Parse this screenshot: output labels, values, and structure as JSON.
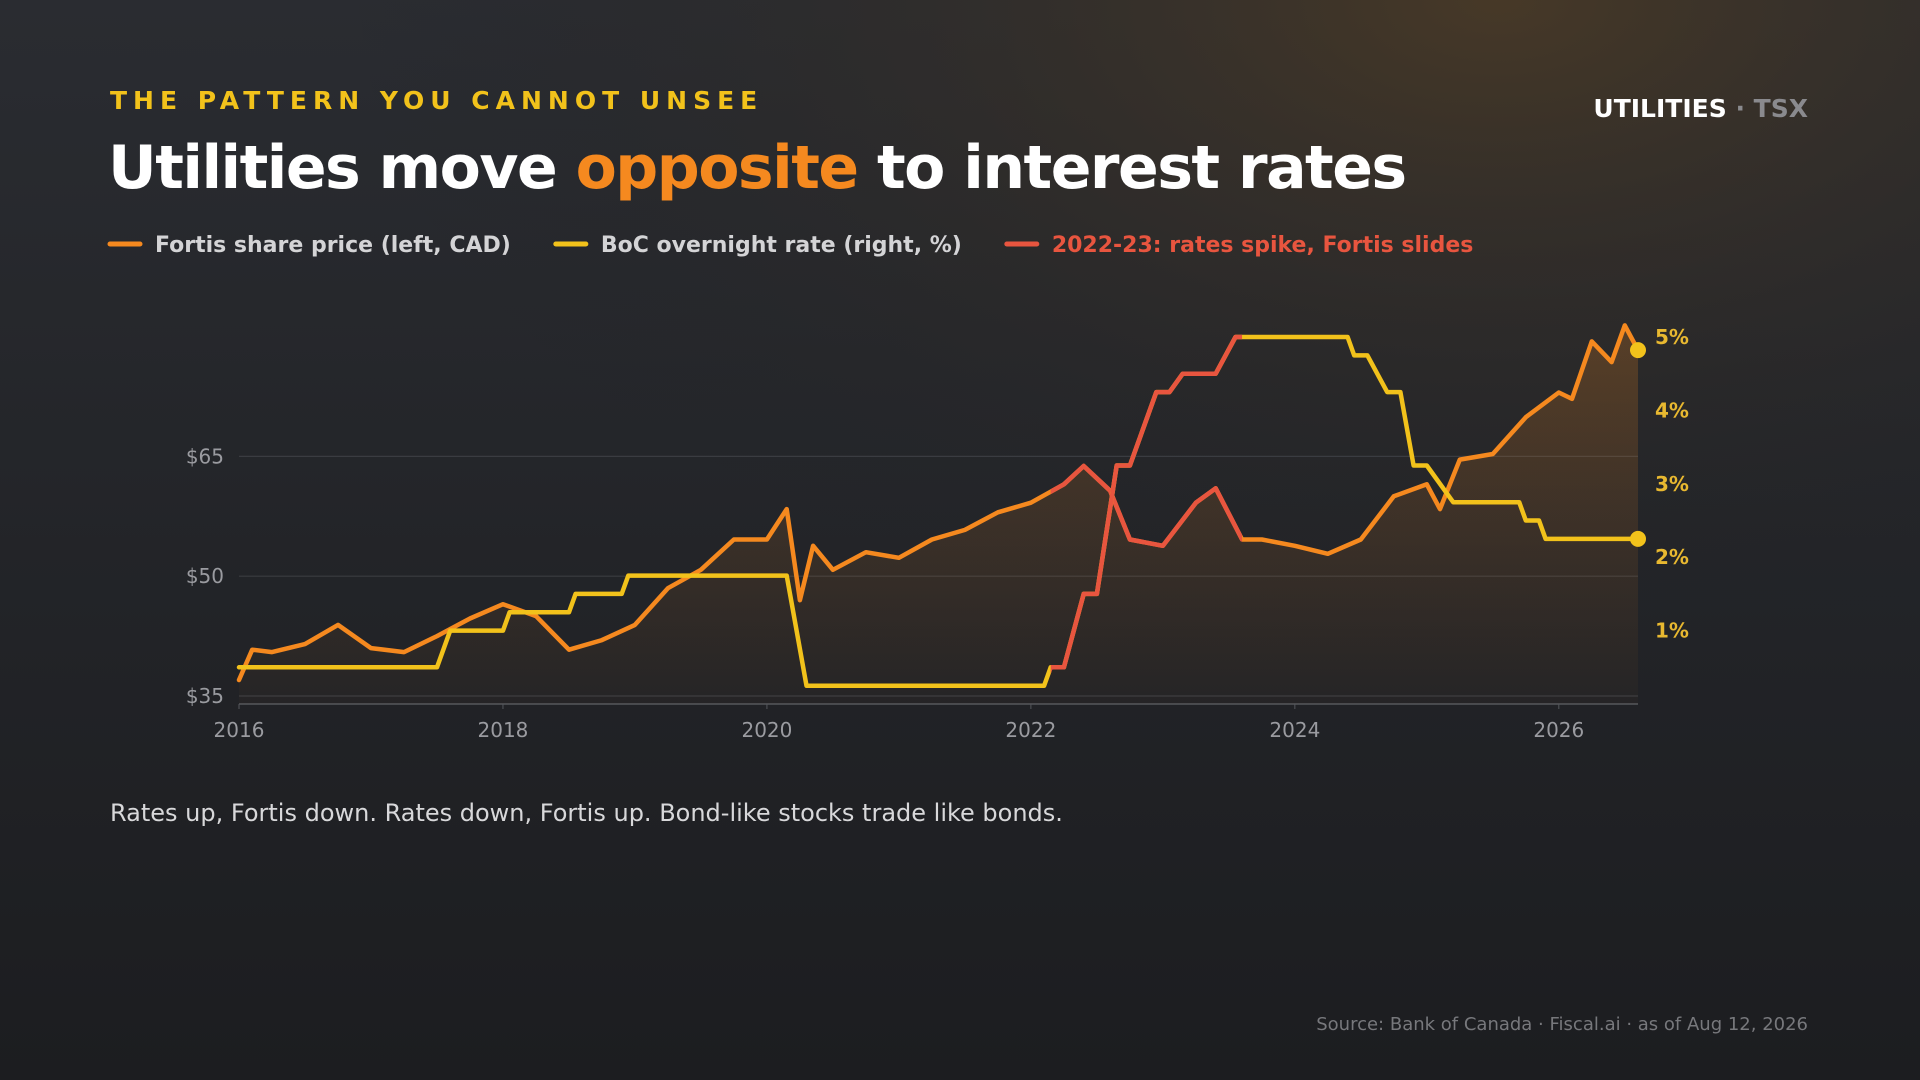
{
  "kicker": "THE PATTERN YOU CANNOT UNSEE",
  "badge": {
    "primary": "UTILITIES",
    "separator": "·",
    "secondary": "TSX"
  },
  "caption": "Rates up, Fortis down. Rates down, Fortis up. Bond-like stocks trade like bonds.",
  "source": "Source: Bank of Canada · Fiscal.ai · as of Aug 12, 2026",
  "chart_data": {
    "type": "line",
    "title": {
      "before": "Utilities move ",
      "highlight": "opposite",
      "after": " to interest rates"
    },
    "xlim": [
      2016,
      2026.6
    ],
    "xticks": [
      2016,
      2018,
      2020,
      2022,
      2024,
      2026
    ],
    "ylim": [
      34,
      82.7
    ],
    "yticks": [
      {
        "value": 35,
        "label": "$35"
      },
      {
        "value": 50,
        "label": "$50"
      },
      {
        "value": 65,
        "label": "$65"
      }
    ],
    "y2lim": [
      0,
      5.3
    ],
    "y2ticks": [
      {
        "value": 1,
        "label": "1%"
      },
      {
        "value": 2,
        "label": "2%"
      },
      {
        "value": 3,
        "label": "3%"
      },
      {
        "value": 4,
        "label": "4%"
      },
      {
        "value": 5,
        "label": "5%"
      }
    ],
    "grid": true,
    "series": [
      {
        "name": "Fortis share price (left, CAD)",
        "color": "#f5891f",
        "axis": "y",
        "x": [
          2016,
          2016.1,
          2016.25,
          2016.5,
          2016.75,
          2017,
          2017.25,
          2017.5,
          2017.75,
          2018,
          2018.25,
          2018.5,
          2018.75,
          2019,
          2019.25,
          2019.5,
          2019.75,
          2020,
          2020.15,
          2020.25,
          2020.35,
          2020.5,
          2020.75,
          2021,
          2021.25,
          2021.5,
          2021.75,
          2022,
          2022.25,
          2022.4,
          2022.6,
          2022.75,
          2023,
          2023.25,
          2023.4,
          2023.6,
          2023.75,
          2024,
          2024.25,
          2024.5,
          2024.75,
          2025,
          2025.1,
          2025.25,
          2025.5,
          2025.75,
          2026,
          2026.1,
          2026.25,
          2026.4,
          2026.5,
          2026.6
        ],
        "values": [
          37,
          40.8,
          40.5,
          41.5,
          43.9,
          41,
          40.5,
          42.5,
          44.7,
          46.5,
          45,
          40.8,
          42,
          43.9,
          48.5,
          50.8,
          54.6,
          54.6,
          58.4,
          47,
          53.8,
          50.8,
          53,
          52.3,
          54.6,
          55.8,
          58,
          59.2,
          61.5,
          63.8,
          60.7,
          54.6,
          53.8,
          59.2,
          61,
          54.6,
          54.6,
          53.8,
          52.8,
          54.6,
          60,
          61.5,
          58.4,
          64.6,
          65.3,
          69.9,
          73,
          72.2,
          79.4,
          76.8,
          81.4,
          78.3
        ]
      },
      {
        "name": "BoC overnight rate (right, %)",
        "color": "#f2c21b",
        "axis": "y2",
        "x": [
          2016,
          2017.5,
          2017.6,
          2018,
          2018.05,
          2018.5,
          2018.55,
          2018.9,
          2018.95,
          2020.15,
          2020.3,
          2022.1,
          2022.15,
          2022.25,
          2022.4,
          2022.5,
          2022.65,
          2022.75,
          2022.95,
          2023.05,
          2023.15,
          2023.4,
          2023.55,
          2024.4,
          2024.45,
          2024.55,
          2024.7,
          2024.8,
          2024.9,
          2025,
          2025.2,
          2025.7,
          2025.75,
          2025.85,
          2025.9,
          2026.6
        ],
        "values": [
          0.5,
          0.5,
          1,
          1,
          1.25,
          1.25,
          1.5,
          1.5,
          1.75,
          1.75,
          0.25,
          0.25,
          0.5,
          0.5,
          1.5,
          1.5,
          3.25,
          3.25,
          4.25,
          4.25,
          4.5,
          4.5,
          5,
          5,
          4.75,
          4.75,
          4.25,
          4.25,
          3.25,
          3.25,
          2.75,
          2.75,
          2.5,
          2.5,
          2.25,
          2.25
        ]
      }
    ],
    "highlight": {
      "name": "2022-23: rates spike, Fortis slides",
      "color": "#e8553f",
      "range": [
        2022.15,
        2023.6
      ]
    }
  }
}
